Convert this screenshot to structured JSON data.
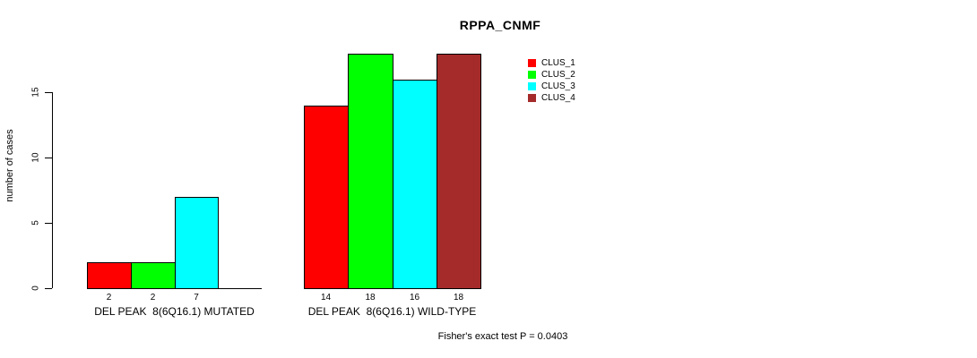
{
  "chart_data": {
    "type": "bar",
    "title": "RPPA_CNMF",
    "ylabel": "number of cases",
    "yticks": [
      0,
      5,
      10,
      15
    ],
    "ylim": [
      0,
      15
    ],
    "grid": false,
    "legend_position": "top-right-inside",
    "series": [
      {
        "name": "CLUS_1",
        "color": "#ff0000"
      },
      {
        "name": "CLUS_2",
        "color": "#00ff00"
      },
      {
        "name": "CLUS_3",
        "color": "#00ffff"
      },
      {
        "name": "CLUS_4",
        "color": "#a52a2a"
      }
    ],
    "groups": [
      {
        "label": "DEL PEAK  8(6Q16.1) MUTATED",
        "values": [
          2,
          2,
          7,
          null
        ],
        "value_labels": [
          "2",
          "2",
          "7",
          ""
        ]
      },
      {
        "label": "DEL PEAK  8(6Q16.1) WILD-TYPE",
        "values": [
          14,
          18,
          16,
          18
        ],
        "value_labels": [
          "14",
          "18",
          "16",
          "18"
        ]
      }
    ],
    "annotation": "Fisher's exact test P = 0.0403"
  }
}
